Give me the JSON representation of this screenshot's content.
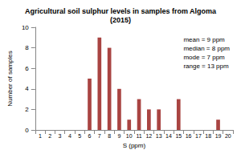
{
  "chart_data": {
    "type": "bar",
    "title": "Agricultural soil sulphur levels in samples from Algoma\n(2015)",
    "x_label": "S (ppm)",
    "y_label": "Number of samples",
    "categories": [
      "1",
      "2",
      "3",
      "4",
      "5",
      "6",
      "7",
      "8",
      "9",
      "10",
      "11",
      "12",
      "13",
      "14",
      "15",
      "16",
      "17",
      "18",
      "19",
      "20"
    ],
    "values": [
      0,
      0,
      0,
      0,
      0,
      5,
      9,
      8,
      4,
      1,
      3,
      2,
      2,
      0,
      3,
      0,
      0,
      0,
      1,
      0
    ],
    "color": "#a94442",
    "ylim": [
      0,
      10
    ],
    "yticks": [
      0,
      2,
      4,
      6,
      8,
      10
    ],
    "grid": false,
    "annotations": [
      "mean = 9 ppm",
      "median = 8 ppm",
      "mode = 7 ppm",
      "range = 13 ppm"
    ]
  }
}
